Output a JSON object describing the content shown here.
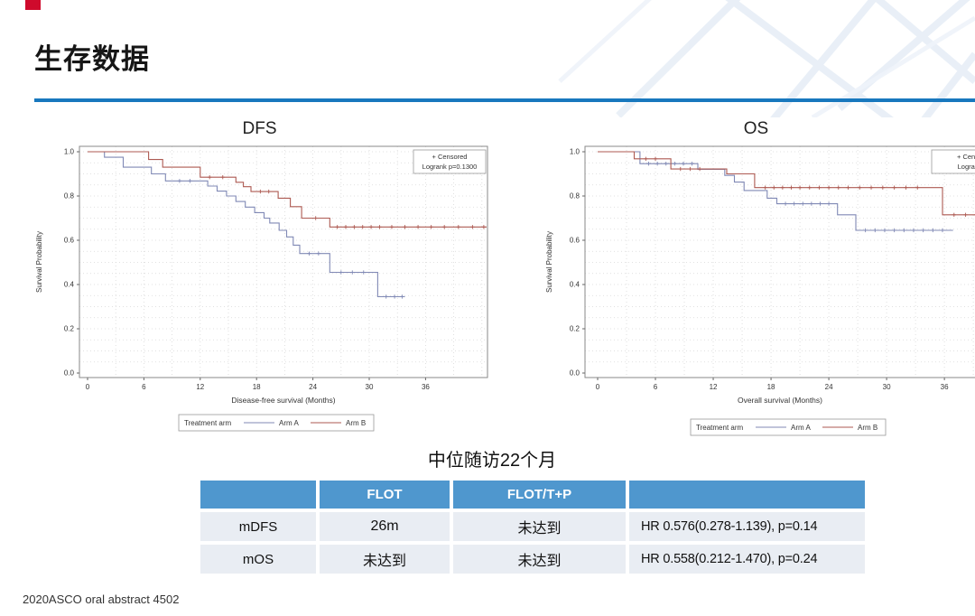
{
  "slide": {
    "title": "生存数据",
    "footer": "2020ASCO oral abstract 4502",
    "accent_color": "#1878be",
    "corner_color": "#cf0a2c"
  },
  "followup_note": "中位随访22个月",
  "table": {
    "header_bg": "#4f97ce",
    "row_bg": "#e9edf3",
    "headers": [
      "",
      "FLOT",
      "FLOT/T+P",
      ""
    ],
    "rows": [
      [
        "mDFS",
        "26m",
        "未达到",
        "HR 0.576(0.278-1.139), p=0.14"
      ],
      [
        "mOS",
        "未达到",
        "未达到",
        "HR 0.558(0.212-1.470), p=0.24"
      ]
    ]
  },
  "chart_data": [
    {
      "type": "line",
      "variant": "kaplan-meier-step",
      "title": "DFS",
      "xlabel": "Disease-free survival (Months)",
      "ylabel": "Survival Probability",
      "xticks": [
        0,
        6,
        12,
        18,
        24,
        30,
        36
      ],
      "yticks": [
        0.0,
        0.2,
        0.4,
        0.6,
        0.8,
        1.0
      ],
      "xlim": [
        0,
        42.5
      ],
      "ylim": [
        0,
        1.0
      ],
      "grid": "dotted",
      "annotation": {
        "censored": "+ Censored",
        "logrank": "Logrank p=0.1300"
      },
      "legend": {
        "label": "Treatment arm",
        "position": "bottom"
      },
      "series": [
        {
          "name": "Arm A",
          "color": "#8089b5",
          "points": [
            [
              0,
              1
            ],
            [
              1.8,
              1
            ],
            [
              1.8,
              0.975
            ],
            [
              3.8,
              0.975
            ],
            [
              3.8,
              0.93
            ],
            [
              6.8,
              0.93
            ],
            [
              6.8,
              0.9
            ],
            [
              8.3,
              0.9
            ],
            [
              8.3,
              0.868
            ],
            [
              12.8,
              0.868
            ],
            [
              12.8,
              0.845
            ],
            [
              13.8,
              0.845
            ],
            [
              13.8,
              0.822
            ],
            [
              14.8,
              0.822
            ],
            [
              14.8,
              0.8
            ],
            [
              15.8,
              0.8
            ],
            [
              15.8,
              0.775
            ],
            [
              16.8,
              0.775
            ],
            [
              16.8,
              0.75
            ],
            [
              17.8,
              0.75
            ],
            [
              17.8,
              0.725
            ],
            [
              18.8,
              0.725
            ],
            [
              18.8,
              0.7
            ],
            [
              19.4,
              0.7
            ],
            [
              19.4,
              0.678
            ],
            [
              20.4,
              0.678
            ],
            [
              20.4,
              0.645
            ],
            [
              21.2,
              0.645
            ],
            [
              21.2,
              0.615
            ],
            [
              21.9,
              0.615
            ],
            [
              21.9,
              0.578
            ],
            [
              22.6,
              0.578
            ],
            [
              22.6,
              0.54
            ],
            [
              25.8,
              0.54
            ],
            [
              25.8,
              0.455
            ],
            [
              30.9,
              0.455
            ],
            [
              30.9,
              0.345
            ],
            [
              33.8,
              0.345
            ]
          ],
          "censors": [
            [
              9.8,
              0.868
            ],
            [
              10.9,
              0.868
            ],
            [
              23.6,
              0.54
            ],
            [
              24.6,
              0.54
            ],
            [
              27,
              0.455
            ],
            [
              28.2,
              0.455
            ],
            [
              29.4,
              0.455
            ],
            [
              31.8,
              0.345
            ],
            [
              32.7,
              0.345
            ],
            [
              33.5,
              0.345
            ]
          ]
        },
        {
          "name": "Arm B",
          "color": "#ad5a52",
          "points": [
            [
              0,
              1
            ],
            [
              6.5,
              1
            ],
            [
              6.5,
              0.965
            ],
            [
              8,
              0.965
            ],
            [
              8,
              0.93
            ],
            [
              12,
              0.93
            ],
            [
              12,
              0.885
            ],
            [
              15.8,
              0.885
            ],
            [
              15.8,
              0.862
            ],
            [
              16.6,
              0.862
            ],
            [
              16.6,
              0.842
            ],
            [
              17.4,
              0.842
            ],
            [
              17.4,
              0.82
            ],
            [
              20.3,
              0.82
            ],
            [
              20.3,
              0.79
            ],
            [
              21.6,
              0.79
            ],
            [
              21.6,
              0.752
            ],
            [
              22.8,
              0.752
            ],
            [
              22.8,
              0.7
            ],
            [
              25.8,
              0.7
            ],
            [
              25.8,
              0.66
            ],
            [
              42.5,
              0.66
            ]
          ],
          "censors": [
            [
              13,
              0.885
            ],
            [
              14.4,
              0.885
            ],
            [
              18.4,
              0.82
            ],
            [
              19.3,
              0.82
            ],
            [
              24.3,
              0.7
            ],
            [
              26.6,
              0.66
            ],
            [
              27.5,
              0.66
            ],
            [
              28.4,
              0.66
            ],
            [
              29.3,
              0.66
            ],
            [
              30.2,
              0.66
            ],
            [
              31.1,
              0.66
            ],
            [
              32.4,
              0.66
            ],
            [
              33.8,
              0.66
            ],
            [
              35.2,
              0.66
            ],
            [
              36.6,
              0.66
            ],
            [
              38,
              0.66
            ],
            [
              39.5,
              0.66
            ],
            [
              41,
              0.66
            ],
            [
              42.2,
              0.66
            ]
          ]
        }
      ]
    },
    {
      "type": "line",
      "variant": "kaplan-meier-step",
      "title": "OS",
      "xlabel": "Overall survival (Months)",
      "ylabel": "Survival Probability",
      "xticks": [
        0,
        6,
        12,
        18,
        24,
        30,
        36
      ],
      "yticks": [
        0.0,
        0.2,
        0.4,
        0.6,
        0.8,
        1.0
      ],
      "xlim": [
        0,
        40
      ],
      "ylim": [
        0,
        1.0
      ],
      "grid": "dotted",
      "annotation": {
        "censored": "+ Censored",
        "logrank": "Logrank p="
      },
      "legend": {
        "label": "Treatment arm",
        "position": "bottom"
      },
      "series": [
        {
          "name": "Arm A",
          "color": "#8089b5",
          "points": [
            [
              0,
              1
            ],
            [
              4.4,
              1
            ],
            [
              4.4,
              0.946
            ],
            [
              10.4,
              0.946
            ],
            [
              10.4,
              0.921
            ],
            [
              13.2,
              0.921
            ],
            [
              13.2,
              0.893
            ],
            [
              14.2,
              0.893
            ],
            [
              14.2,
              0.863
            ],
            [
              15.2,
              0.863
            ],
            [
              15.2,
              0.825
            ],
            [
              17.6,
              0.825
            ],
            [
              17.6,
              0.79
            ],
            [
              18.6,
              0.79
            ],
            [
              18.6,
              0.765
            ],
            [
              24.9,
              0.765
            ],
            [
              24.9,
              0.715
            ],
            [
              26.8,
              0.715
            ],
            [
              26.8,
              0.645
            ],
            [
              36.9,
              0.645
            ]
          ],
          "censors": [
            [
              5.3,
              0.946
            ],
            [
              6.2,
              0.946
            ],
            [
              7.1,
              0.946
            ],
            [
              8,
              0.946
            ],
            [
              8.9,
              0.946
            ],
            [
              9.8,
              0.946
            ],
            [
              19.5,
              0.765
            ],
            [
              20.4,
              0.765
            ],
            [
              21.3,
              0.765
            ],
            [
              22.2,
              0.765
            ],
            [
              23.1,
              0.765
            ],
            [
              24,
              0.765
            ],
            [
              27.8,
              0.645
            ],
            [
              28.8,
              0.645
            ],
            [
              29.8,
              0.645
            ],
            [
              30.8,
              0.645
            ],
            [
              31.8,
              0.645
            ],
            [
              32.8,
              0.645
            ],
            [
              33.8,
              0.645
            ],
            [
              34.8,
              0.645
            ],
            [
              35.8,
              0.645
            ]
          ]
        },
        {
          "name": "Arm B",
          "color": "#ad5a52",
          "points": [
            [
              0,
              1
            ],
            [
              3.8,
              1
            ],
            [
              3.8,
              0.968
            ],
            [
              7.6,
              0.968
            ],
            [
              7.6,
              0.922
            ],
            [
              13.4,
              0.922
            ],
            [
              13.4,
              0.9
            ],
            [
              16.3,
              0.9
            ],
            [
              16.3,
              0.838
            ],
            [
              35.8,
              0.838
            ],
            [
              35.8,
              0.715
            ],
            [
              40,
              0.715
            ]
          ],
          "censors": [
            [
              5,
              0.968
            ],
            [
              6,
              0.968
            ],
            [
              8.6,
              0.922
            ],
            [
              9.6,
              0.922
            ],
            [
              10.6,
              0.922
            ],
            [
              17.4,
              0.838
            ],
            [
              18.3,
              0.838
            ],
            [
              19.2,
              0.838
            ],
            [
              20.1,
              0.838
            ],
            [
              21,
              0.838
            ],
            [
              22,
              0.838
            ],
            [
              23,
              0.838
            ],
            [
              24,
              0.838
            ],
            [
              25,
              0.838
            ],
            [
              26,
              0.838
            ],
            [
              27.2,
              0.838
            ],
            [
              28.4,
              0.838
            ],
            [
              29.6,
              0.838
            ],
            [
              30.8,
              0.838
            ],
            [
              32,
              0.838
            ],
            [
              33.2,
              0.838
            ],
            [
              37,
              0.715
            ],
            [
              38.2,
              0.715
            ],
            [
              39.3,
              0.715
            ]
          ]
        }
      ]
    }
  ]
}
